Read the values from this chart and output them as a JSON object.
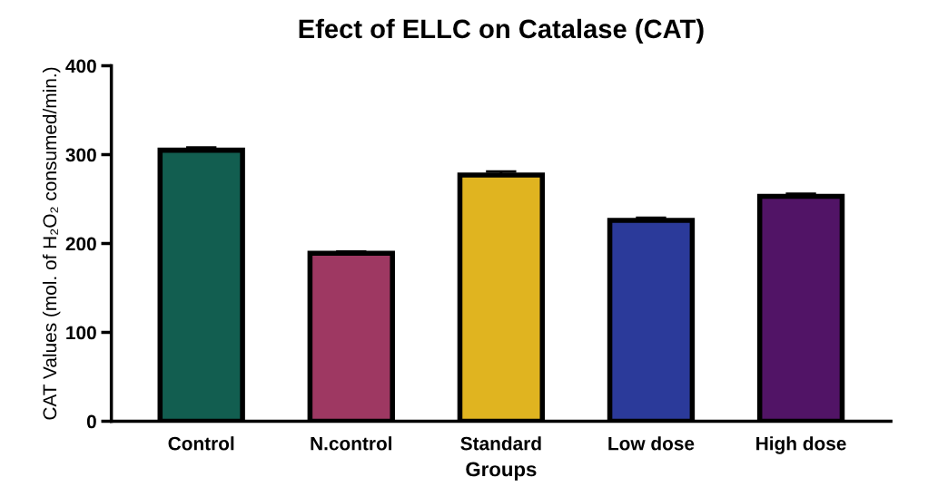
{
  "chart_data": {
    "type": "bar",
    "title": "Efect of ELLC on Catalase (CAT)",
    "xlabel": "Groups",
    "ylabel": "CAT Values (mol. of H₂O₂ consumed/min.)",
    "categories": [
      "Control",
      "N.control",
      "Standard",
      "Low dose",
      "High dose"
    ],
    "values": [
      305,
      189,
      277,
      226,
      253
    ],
    "errors": [
      3,
      2,
      4,
      3,
      3
    ],
    "colors": [
      "#125e50",
      "#9e3862",
      "#e0b420",
      "#2b3a9a",
      "#511466"
    ],
    "ylim": [
      0,
      400
    ],
    "yticks": [
      0,
      100,
      200,
      300,
      400
    ],
    "grid": false,
    "legend": false
  }
}
